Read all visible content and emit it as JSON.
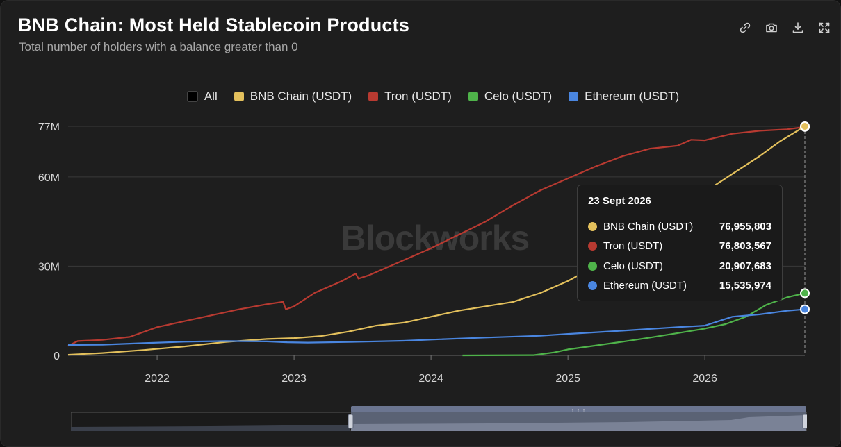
{
  "header": {
    "title": "BNB Chain: Most Held Stablecoin Products",
    "subtitle": "Total number of holders with a balance greater than 0"
  },
  "toolbar": [
    {
      "name": "link-icon"
    },
    {
      "name": "camera-icon"
    },
    {
      "name": "download-icon"
    },
    {
      "name": "fullscreen-icon"
    }
  ],
  "legend": [
    {
      "label": "All",
      "color": "#000000"
    },
    {
      "label": "BNB Chain (USDT)",
      "color": "#e3c05c"
    },
    {
      "label": "Tron (USDT)",
      "color": "#b83a31"
    },
    {
      "label": "Celo (USDT)",
      "color": "#4fb34a"
    },
    {
      "label": "Ethereum (USDT)",
      "color": "#4a86e0"
    }
  ],
  "watermark": "Blockworks",
  "tooltip": {
    "date": "23 Sept 2026",
    "rows": [
      {
        "name": "BNB Chain (USDT)",
        "value": "76,955,803",
        "color": "#e3c05c"
      },
      {
        "name": "Tron (USDT)",
        "value": "76,803,567",
        "color": "#b83a31"
      },
      {
        "name": "Celo (USDT)",
        "value": "20,907,683",
        "color": "#4fb34a"
      },
      {
        "name": "Ethereum (USDT)",
        "value": "15,535,974",
        "color": "#4a86e0"
      }
    ]
  },
  "chart_data": {
    "type": "line",
    "title": "BNB Chain: Most Held Stablecoin Products",
    "subtitle": "Total number of holders with a balance greater than 0",
    "x_range": [
      2021.35,
      2026.73
    ],
    "ylim": [
      0,
      77000000
    ],
    "y_ticks": [
      {
        "value": 0,
        "label": "0"
      },
      {
        "value": 30000000,
        "label": "30M"
      },
      {
        "value": 60000000,
        "label": "60M"
      },
      {
        "value": 77000000,
        "label": "77M"
      }
    ],
    "x_ticks": [
      {
        "value": 2022,
        "label": "2022"
      },
      {
        "value": 2023,
        "label": "2023"
      },
      {
        "value": 2024,
        "label": "2024"
      },
      {
        "value": 2025,
        "label": "2025"
      },
      {
        "value": 2026,
        "label": "2026"
      }
    ],
    "grid": "horizontal",
    "legend_position": "top-center",
    "series": [
      {
        "name": "Tron (USDT)",
        "color": "#b83a31",
        "points": [
          [
            2021.35,
            3.2
          ],
          [
            2021.42,
            4.8
          ],
          [
            2021.6,
            5.2
          ],
          [
            2021.8,
            6.2
          ],
          [
            2022.0,
            9.5
          ],
          [
            2022.2,
            11.5
          ],
          [
            2022.4,
            13.5
          ],
          [
            2022.6,
            15.5
          ],
          [
            2022.8,
            17.2
          ],
          [
            2022.92,
            18.0
          ],
          [
            2022.94,
            15.5
          ],
          [
            2023.0,
            16.5
          ],
          [
            2023.15,
            21.0
          ],
          [
            2023.35,
            25.0
          ],
          [
            2023.45,
            27.5
          ],
          [
            2023.47,
            25.8
          ],
          [
            2023.55,
            27.0
          ],
          [
            2023.8,
            32.0
          ],
          [
            2024.0,
            36.0
          ],
          [
            2024.2,
            40.5
          ],
          [
            2024.4,
            45.0
          ],
          [
            2024.6,
            50.5
          ],
          [
            2024.8,
            55.5
          ],
          [
            2025.0,
            59.5
          ],
          [
            2025.2,
            63.5
          ],
          [
            2025.4,
            67.0
          ],
          [
            2025.6,
            69.5
          ],
          [
            2025.8,
            70.5
          ],
          [
            2025.9,
            72.5
          ],
          [
            2026.0,
            72.3
          ],
          [
            2026.2,
            74.5
          ],
          [
            2026.4,
            75.5
          ],
          [
            2026.6,
            76.0
          ],
          [
            2026.73,
            76.8
          ]
        ]
      },
      {
        "name": "BNB Chain (USDT)",
        "color": "#e3c05c",
        "points": [
          [
            2021.35,
            0.2
          ],
          [
            2021.6,
            0.8
          ],
          [
            2021.9,
            1.8
          ],
          [
            2022.2,
            3.0
          ],
          [
            2022.5,
            4.5
          ],
          [
            2022.8,
            5.5
          ],
          [
            2023.0,
            5.8
          ],
          [
            2023.2,
            6.5
          ],
          [
            2023.4,
            8.0
          ],
          [
            2023.6,
            10.0
          ],
          [
            2023.8,
            11.0
          ],
          [
            2024.0,
            13.0
          ],
          [
            2024.2,
            15.0
          ],
          [
            2024.4,
            16.5
          ],
          [
            2024.6,
            18.0
          ],
          [
            2024.8,
            21.0
          ],
          [
            2025.0,
            25.0
          ],
          [
            2025.2,
            30.0
          ],
          [
            2025.4,
            35.0
          ],
          [
            2025.6,
            42.0
          ],
          [
            2025.8,
            50.0
          ],
          [
            2026.0,
            55.0
          ],
          [
            2026.2,
            61.0
          ],
          [
            2026.4,
            67.0
          ],
          [
            2026.55,
            72.0
          ],
          [
            2026.73,
            77.0
          ]
        ]
      },
      {
        "name": "Celo (USDT)",
        "color": "#4fb34a",
        "points": [
          [
            2024.23,
            0.0
          ],
          [
            2024.75,
            0.1
          ],
          [
            2024.9,
            1.0
          ],
          [
            2025.0,
            2.0
          ],
          [
            2025.2,
            3.3
          ],
          [
            2025.4,
            4.6
          ],
          [
            2025.6,
            6.0
          ],
          [
            2025.8,
            7.5
          ],
          [
            2026.0,
            9.0
          ],
          [
            2026.15,
            10.5
          ],
          [
            2026.3,
            13.0
          ],
          [
            2026.45,
            17.0
          ],
          [
            2026.6,
            19.5
          ],
          [
            2026.73,
            20.9
          ]
        ]
      },
      {
        "name": "Ethereum (USDT)",
        "color": "#4a86e0",
        "points": [
          [
            2021.35,
            3.5
          ],
          [
            2021.6,
            3.6
          ],
          [
            2021.9,
            4.1
          ],
          [
            2022.2,
            4.6
          ],
          [
            2022.5,
            4.8
          ],
          [
            2022.8,
            4.7
          ],
          [
            2022.95,
            4.4
          ],
          [
            2023.1,
            4.3
          ],
          [
            2023.4,
            4.5
          ],
          [
            2023.8,
            4.9
          ],
          [
            2024.0,
            5.3
          ],
          [
            2024.4,
            6.0
          ],
          [
            2024.8,
            6.6
          ],
          [
            2025.0,
            7.2
          ],
          [
            2025.4,
            8.3
          ],
          [
            2025.8,
            9.5
          ],
          [
            2026.0,
            10.0
          ],
          [
            2026.1,
            11.5
          ],
          [
            2026.2,
            13.0
          ],
          [
            2026.4,
            13.8
          ],
          [
            2026.6,
            15.0
          ],
          [
            2026.73,
            15.5
          ]
        ]
      }
    ],
    "crosshair_x": 2026.73
  }
}
